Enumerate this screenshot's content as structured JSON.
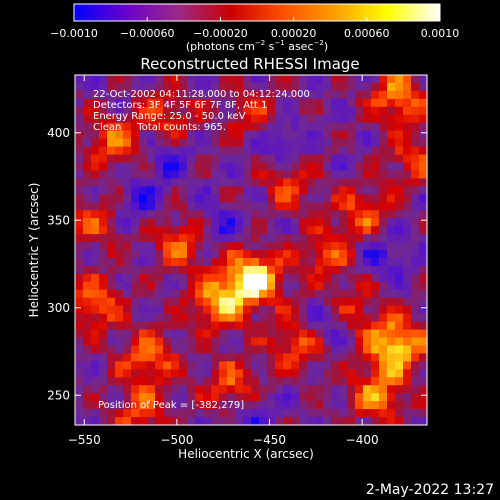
{
  "colorbar": {
    "tick_labels": [
      "−0.0010",
      "−0.00060",
      "−0.00020",
      "0.00020",
      "0.00060",
      "0.0010"
    ],
    "tick_values": [
      -0.001,
      -0.0006,
      -0.0002,
      0.0002,
      0.0006,
      0.001
    ],
    "range": [
      -0.001,
      0.001
    ],
    "units_text": "(photons cm",
    "units_sup1": "−2",
    "units_mid1": " s",
    "units_sup2": "−1",
    "units_mid2": " asec",
    "units_sup3": "−2",
    "units_end": ")",
    "colormap": [
      "#0000ff",
      "#6a00cc",
      "#9a2a88",
      "#cc0000",
      "#ff5000",
      "#ffa000",
      "#ffff00",
      "#ffffff"
    ]
  },
  "image": {
    "title": "Reconstructed RHESSI Image",
    "info_lines": [
      "22-Oct-2002 04:11:28.000 to 04:12:24.000",
      "Detectors: 3F 4F 5F 6F 7F 8F, Att 1",
      "Energy Range: 25.0 - 50.0 keV",
      "Clean     Total counts: 965."
    ],
    "peak_text": "Position of Peak = [-382,279]",
    "x_axis": {
      "label": "Heliocentric X (arcsec)",
      "range": [
        -555,
        -365
      ],
      "ticks": [
        -550,
        -500,
        -450,
        -400
      ],
      "tick_labels": [
        "−550",
        "−500",
        "−450",
        "−400"
      ]
    },
    "y_axis": {
      "label": "Heliocentric Y (arcsec)",
      "range": [
        233,
        433
      ],
      "ticks": [
        250,
        300,
        350,
        400
      ],
      "tick_labels": [
        "250",
        "300",
        "350",
        "400"
      ]
    },
    "blobs": [
      {
        "x": -459,
        "y": 317,
        "amp": 1.0
      },
      {
        "x": -478,
        "y": 302,
        "amp": 0.75
      },
      {
        "x": -497,
        "y": 338,
        "amp": 0.6
      },
      {
        "x": -382,
        "y": 279,
        "amp": 0.95
      },
      {
        "x": -392,
        "y": 250,
        "amp": 0.65
      },
      {
        "x": -380,
        "y": 420,
        "amp": 0.7
      },
      {
        "x": -535,
        "y": 395,
        "amp": 0.55
      },
      {
        "x": -545,
        "y": 302,
        "amp": 0.6
      },
      {
        "x": -515,
        "y": 272,
        "amp": 0.6
      },
      {
        "x": -470,
        "y": 255,
        "amp": 0.55
      },
      {
        "x": -440,
        "y": 370,
        "amp": 0.45
      },
      {
        "x": -420,
        "y": 330,
        "amp": 0.5
      },
      {
        "x": -400,
        "y": 355,
        "amp": 0.5
      },
      {
        "x": -545,
        "y": 350,
        "amp": 0.45
      },
      {
        "x": -505,
        "y": 410,
        "amp": 0.45
      },
      {
        "x": -435,
        "y": 280,
        "amp": 0.55
      },
      {
        "x": -372,
        "y": 385,
        "amp": 0.45
      },
      {
        "x": -520,
        "y": 240,
        "amp": 0.5
      },
      {
        "x": -405,
        "y": 300,
        "amp": 0.35
      },
      {
        "x": -460,
        "y": 410,
        "amp": 0.4
      }
    ],
    "dips": [
      {
        "x": -520,
        "y": 360
      },
      {
        "x": -445,
        "y": 395
      },
      {
        "x": -505,
        "y": 385
      },
      {
        "x": -420,
        "y": 290
      },
      {
        "x": -390,
        "y": 330
      },
      {
        "x": -480,
        "y": 345
      },
      {
        "x": -460,
        "y": 240
      }
    ]
  },
  "footer": {
    "timestamp": "2-May-2022 13:27"
  }
}
